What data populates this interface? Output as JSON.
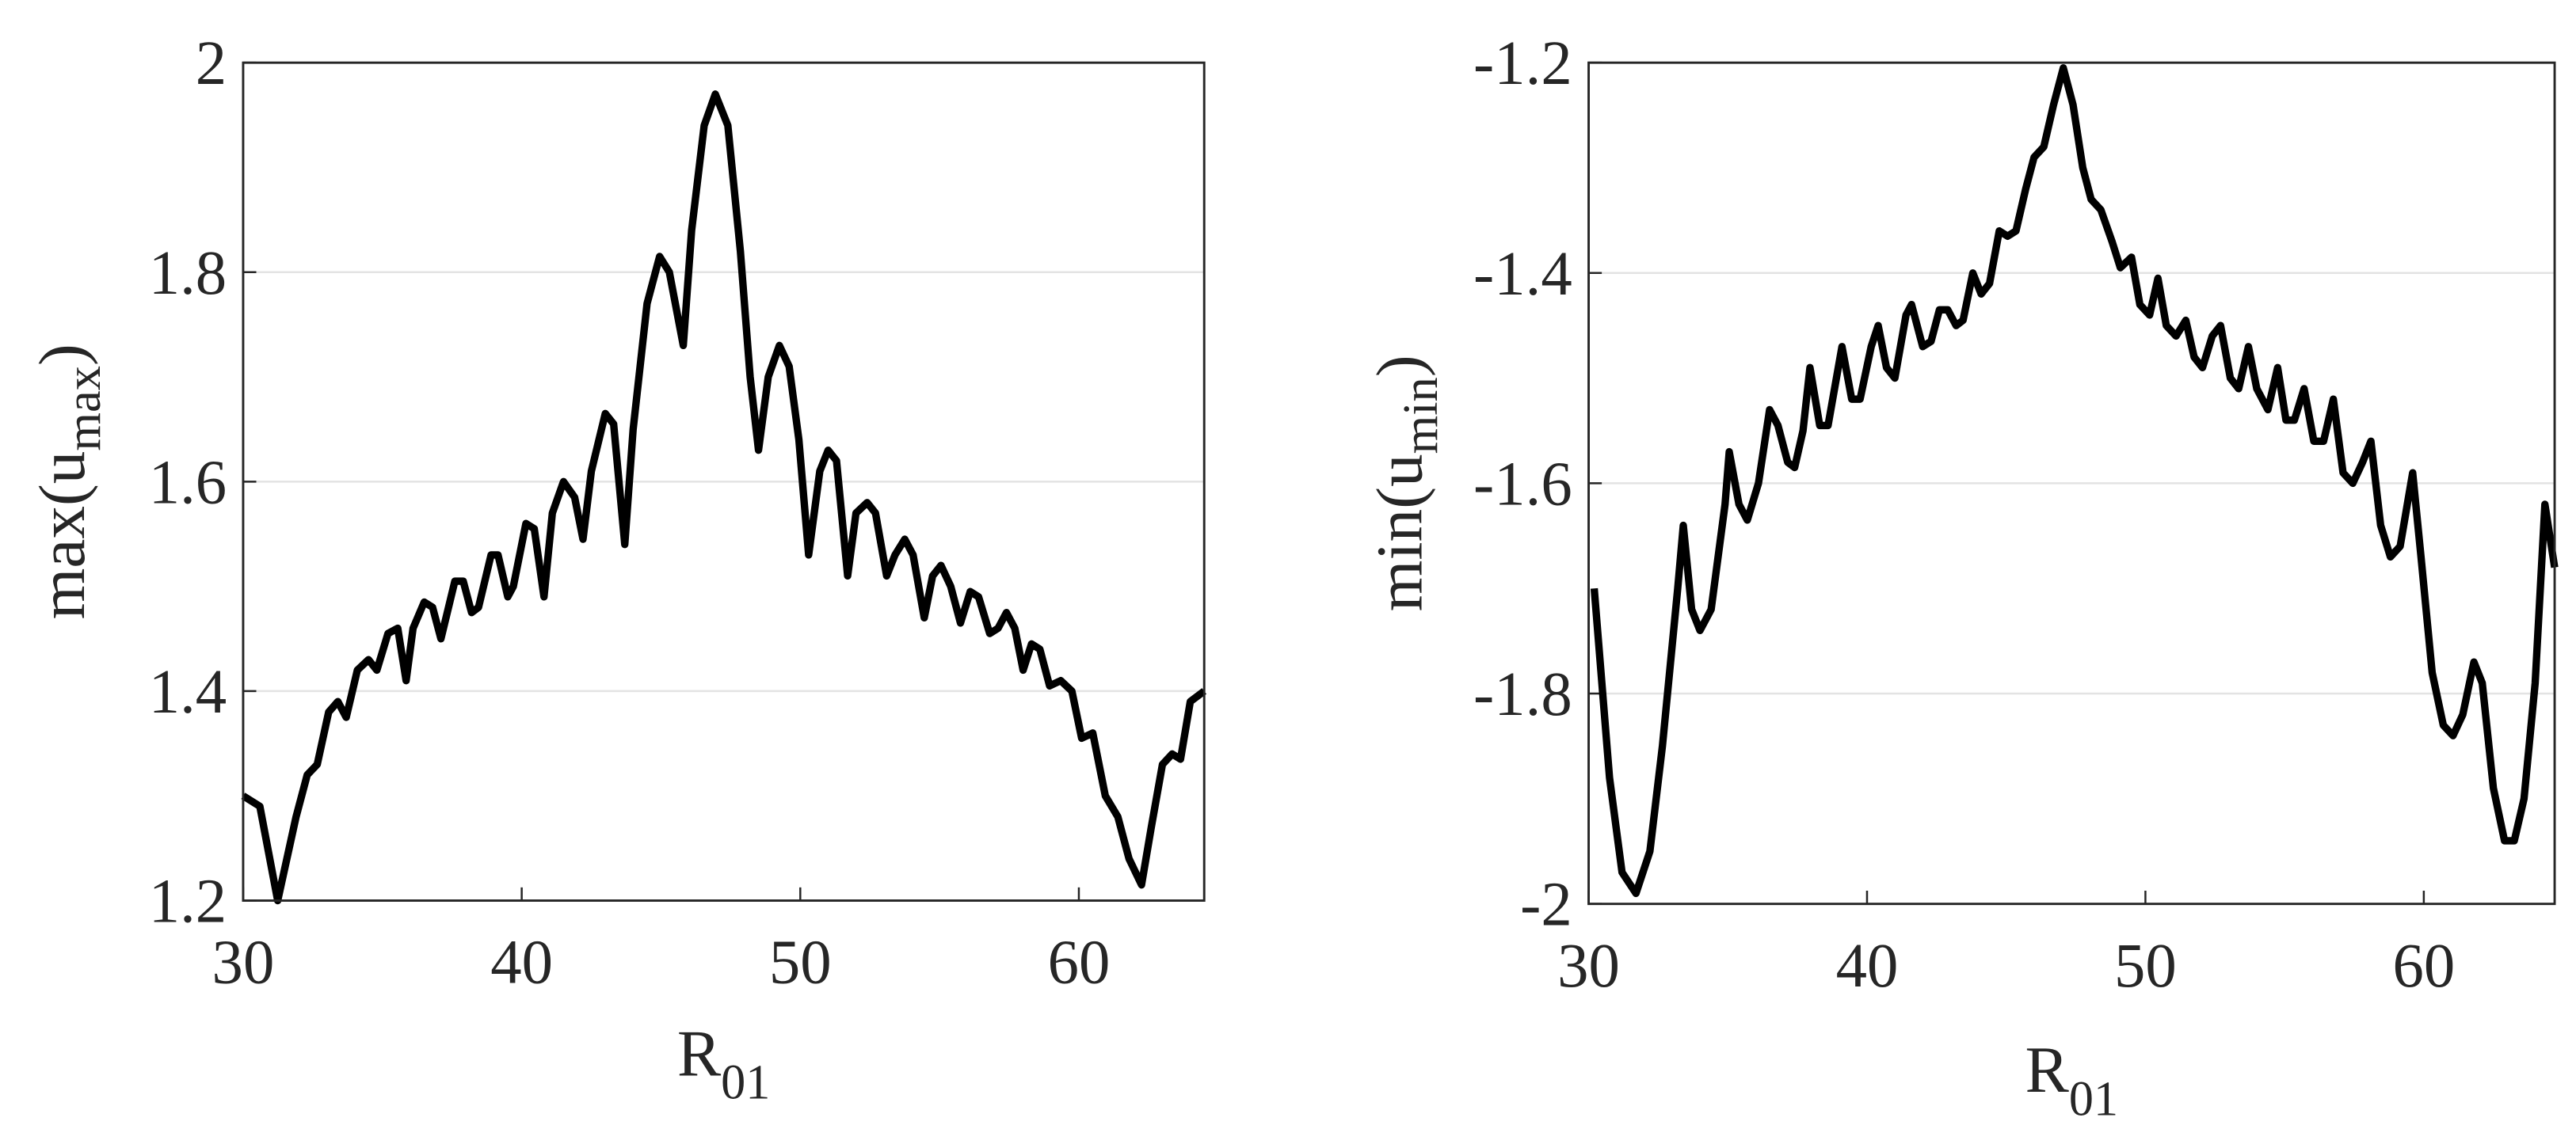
{
  "chart_data": [
    {
      "type": "line",
      "xlabel": [
        "R",
        "01"
      ],
      "ylabel": [
        "max(u",
        "max",
        ")"
      ],
      "xlim": [
        30,
        64.5
      ],
      "ylim": [
        1.2,
        2
      ],
      "xticks": [
        30,
        40,
        50,
        60
      ],
      "yticks": [
        1.2,
        1.4,
        1.6,
        1.8,
        2
      ],
      "grid": true,
      "x": [
        30,
        30.6,
        31.24,
        31.9,
        32.3,
        32.66,
        33.07,
        33.4,
        33.7,
        34.1,
        34.5,
        34.8,
        35.2,
        35.55,
        35.85,
        36.1,
        36.5,
        36.8,
        37.1,
        37.6,
        37.9,
        38.2,
        38.45,
        38.9,
        39.15,
        39.5,
        39.7,
        40.15,
        40.45,
        40.8,
        41.1,
        41.5,
        41.9,
        42.2,
        42.5,
        43.0,
        43.3,
        43.7,
        44.0,
        44.5,
        44.95,
        45.3,
        45.8,
        46.1,
        46.55,
        46.95,
        47.4,
        47.85,
        48.2,
        48.5,
        48.85,
        49.25,
        49.6,
        49.95,
        50.3,
        50.7,
        51.0,
        51.3,
        51.7,
        52.0,
        52.4,
        52.7,
        53.1,
        53.4,
        53.75,
        54.05,
        54.45,
        54.75,
        55.05,
        55.4,
        55.75,
        56.1,
        56.4,
        56.8,
        57.1,
        57.4,
        57.7,
        58.0,
        58.3,
        58.6,
        58.95,
        59.35,
        59.75,
        60.1,
        60.5,
        60.95,
        61.4,
        61.8,
        62.25,
        62.6,
        63.0,
        63.35,
        63.65,
        64.0,
        64.5
      ],
      "series": [
        {
          "color": "#000000",
          "values": [
            1.3,
            1.29,
            1.2,
            1.28,
            1.32,
            1.33,
            1.38,
            1.39,
            1.375,
            1.42,
            1.43,
            1.42,
            1.455,
            1.46,
            1.41,
            1.46,
            1.485,
            1.48,
            1.45,
            1.505,
            1.505,
            1.475,
            1.48,
            1.53,
            1.53,
            1.49,
            1.5,
            1.56,
            1.555,
            1.49,
            1.57,
            1.6,
            1.585,
            1.545,
            1.61,
            1.665,
            1.655,
            1.54,
            1.65,
            1.77,
            1.815,
            1.8,
            1.73,
            1.84,
            1.94,
            1.97,
            1.94,
            1.82,
            1.7,
            1.63,
            1.7,
            1.73,
            1.71,
            1.64,
            1.53,
            1.61,
            1.63,
            1.62,
            1.51,
            1.57,
            1.58,
            1.57,
            1.51,
            1.53,
            1.545,
            1.53,
            1.47,
            1.51,
            1.52,
            1.5,
            1.465,
            1.495,
            1.49,
            1.455,
            1.46,
            1.475,
            1.46,
            1.42,
            1.445,
            1.44,
            1.405,
            1.41,
            1.4,
            1.355,
            1.36,
            1.3,
            1.28,
            1.24,
            1.215,
            1.27,
            1.33,
            1.34,
            1.335,
            1.39,
            1.4
          ]
        }
      ]
    },
    {
      "type": "line",
      "xlabel": [
        "R",
        "01"
      ],
      "ylabel": [
        "min(u",
        "min",
        ")"
      ],
      "xlim": [
        30,
        64.7
      ],
      "ylim": [
        -2,
        -1.2
      ],
      "xticks": [
        30,
        40,
        50,
        60
      ],
      "yticks": [
        -2,
        -1.8,
        -1.6,
        -1.4,
        -1.2
      ],
      "grid": true,
      "x": [
        30.2,
        30.75,
        31.2,
        31.7,
        32.2,
        32.65,
        33.2,
        33.4,
        33.7,
        34.0,
        34.4,
        34.9,
        35.05,
        35.4,
        35.7,
        36.1,
        36.5,
        36.8,
        37.15,
        37.4,
        37.7,
        37.95,
        38.3,
        38.6,
        39.1,
        39.45,
        39.75,
        40.15,
        40.4,
        40.7,
        41.0,
        41.4,
        41.6,
        42.0,
        42.3,
        42.6,
        42.9,
        43.2,
        43.45,
        43.8,
        44.1,
        44.4,
        44.75,
        45.05,
        45.35,
        45.7,
        46.0,
        46.35,
        46.7,
        47.05,
        47.4,
        47.75,
        48.05,
        48.4,
        48.8,
        49.1,
        49.5,
        49.8,
        50.15,
        50.45,
        50.75,
        51.1,
        51.45,
        51.75,
        52.05,
        52.4,
        52.7,
        53.05,
        53.35,
        53.7,
        54.0,
        54.4,
        54.75,
        55.05,
        55.35,
        55.7,
        56.05,
        56.4,
        56.75,
        57.1,
        57.45,
        57.8,
        58.1,
        58.45,
        58.8,
        59.15,
        59.6,
        59.9,
        60.3,
        60.7,
        61.05,
        61.4,
        61.8,
        62.1,
        62.5,
        62.9,
        63.25,
        63.6,
        64.0,
        64.35,
        64.7
      ],
      "series": [
        {
          "color": "#000000",
          "values": [
            -1.7,
            -1.88,
            -1.97,
            -1.99,
            -1.95,
            -1.85,
            -1.7,
            -1.64,
            -1.72,
            -1.74,
            -1.72,
            -1.62,
            -1.57,
            -1.62,
            -1.635,
            -1.6,
            -1.53,
            -1.545,
            -1.58,
            -1.585,
            -1.55,
            -1.49,
            -1.545,
            -1.545,
            -1.47,
            -1.52,
            -1.52,
            -1.47,
            -1.45,
            -1.49,
            -1.5,
            -1.44,
            -1.43,
            -1.47,
            -1.465,
            -1.435,
            -1.435,
            -1.45,
            -1.445,
            -1.4,
            -1.42,
            -1.41,
            -1.36,
            -1.365,
            -1.36,
            -1.32,
            -1.29,
            -1.28,
            -1.24,
            -1.205,
            -1.24,
            -1.3,
            -1.33,
            -1.34,
            -1.37,
            -1.395,
            -1.385,
            -1.43,
            -1.44,
            -1.405,
            -1.45,
            -1.46,
            -1.445,
            -1.48,
            -1.49,
            -1.46,
            -1.45,
            -1.5,
            -1.51,
            -1.47,
            -1.51,
            -1.53,
            -1.49,
            -1.54,
            -1.54,
            -1.51,
            -1.56,
            -1.56,
            -1.52,
            -1.59,
            -1.6,
            -1.58,
            -1.56,
            -1.64,
            -1.67,
            -1.66,
            -1.59,
            -1.67,
            -1.78,
            -1.83,
            -1.84,
            -1.82,
            -1.77,
            -1.79,
            -1.89,
            -1.94,
            -1.94,
            -1.9,
            -1.79,
            -1.62,
            -1.68
          ]
        }
      ]
    }
  ]
}
